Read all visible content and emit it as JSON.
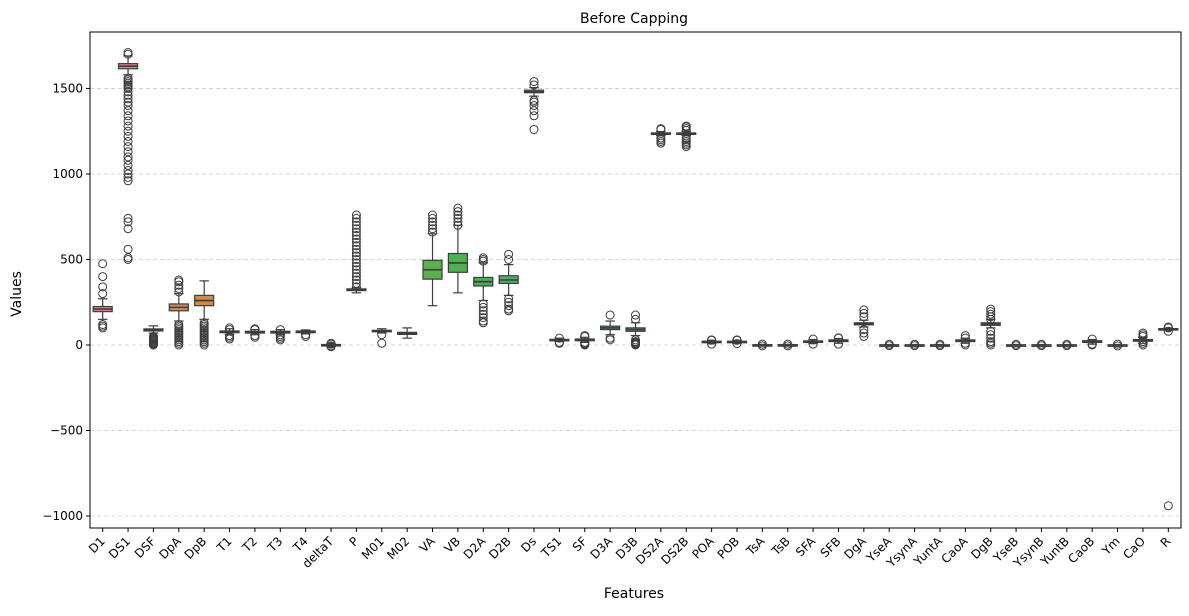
{
  "chart_data": {
    "type": "box",
    "title": "Before Capping",
    "xlabel": "Features",
    "ylabel": "Values",
    "ylim": [
      -1070,
      1830
    ],
    "yticks": [
      -1000,
      -500,
      0,
      500,
      1000,
      1500
    ],
    "ytick_labels": [
      "−1000",
      "−500",
      "0",
      "500",
      "1000",
      "1500"
    ],
    "grid": "y-dashed",
    "box_width": 0.75,
    "series": [
      {
        "name": "D1",
        "color": "#e1818d",
        "q1": 195,
        "med": 210,
        "q3": 225,
        "lo": 150,
        "hi": 270,
        "outliers": [
          100,
          110,
          120,
          300,
          340,
          400,
          475
        ]
      },
      {
        "name": "DS1",
        "color": "#e0848a",
        "q1": 1615,
        "med": 1630,
        "q3": 1645,
        "lo": 1580,
        "hi": 1690,
        "outliers": [
          500,
          510,
          560,
          680,
          720,
          740,
          960,
          980,
          1000,
          1020,
          1050,
          1080,
          1100,
          1130,
          1160,
          1190,
          1220,
          1250,
          1280,
          1310,
          1340,
          1370,
          1400,
          1420,
          1440,
          1460,
          1480,
          1500,
          1510,
          1520,
          1530,
          1540,
          1550,
          1560,
          1700,
          1710
        ]
      },
      {
        "name": "DSF",
        "color": "#dd8a6f",
        "q1": 82,
        "med": 88,
        "q3": 94,
        "lo": 70,
        "hi": 112,
        "outliers": [
          0,
          5,
          10,
          15,
          20,
          25,
          30,
          35,
          40,
          45,
          50
        ]
      },
      {
        "name": "DpA",
        "color": "#d28b53",
        "q1": 200,
        "med": 220,
        "q3": 240,
        "lo": 140,
        "hi": 300,
        "outliers": [
          0,
          10,
          20,
          30,
          40,
          50,
          60,
          70,
          80,
          90,
          100,
          110,
          120,
          310,
          330,
          350,
          370,
          380
        ]
      },
      {
        "name": "DpB",
        "color": "#cd8d48",
        "q1": 230,
        "med": 260,
        "q3": 290,
        "lo": 150,
        "hi": 375,
        "outliers": [
          0,
          10,
          20,
          30,
          40,
          50,
          60,
          70,
          80,
          90,
          100,
          110,
          120,
          130
        ]
      },
      {
        "name": "T1",
        "color": "#bf9447",
        "q1": 72,
        "med": 78,
        "q3": 82,
        "lo": 60,
        "hi": 95,
        "outliers": [
          35,
          45,
          55,
          90,
          100
        ]
      },
      {
        "name": "T2",
        "color": "#b49a4a",
        "q1": 70,
        "med": 76,
        "q3": 80,
        "lo": 60,
        "hi": 90,
        "outliers": [
          45,
          55,
          90,
          95
        ]
      },
      {
        "name": "T3",
        "color": "#a89f4b",
        "q1": 70,
        "med": 76,
        "q3": 80,
        "lo": 60,
        "hi": 90,
        "outliers": [
          30,
          40,
          50,
          60,
          90
        ]
      },
      {
        "name": "T4",
        "color": "#9ba34b",
        "q1": 72,
        "med": 78,
        "q3": 82,
        "lo": 65,
        "hi": 88,
        "outliers": [
          50,
          60
        ]
      },
      {
        "name": "deltaT",
        "color": "#8ca74d",
        "q1": -3,
        "med": 0,
        "q3": 3,
        "lo": -8,
        "hi": 8,
        "outliers": [
          -10,
          -5,
          5,
          10
        ]
      },
      {
        "name": "P",
        "color": "#7eaa4f",
        "q1": 318,
        "med": 322,
        "q3": 328,
        "lo": 305,
        "hi": 335,
        "outliers": [
          340,
          360,
          380,
          400,
          420,
          440,
          460,
          480,
          500,
          520,
          540,
          560,
          580,
          600,
          620,
          640,
          660,
          680,
          700,
          720,
          740,
          760
        ]
      },
      {
        "name": "M01",
        "color": "#70ac4f",
        "q1": 78,
        "med": 82,
        "q3": 86,
        "lo": 70,
        "hi": 95,
        "outliers": [
          10,
          60
        ]
      },
      {
        "name": "M02",
        "color": "#63ae4f",
        "q1": 62,
        "med": 68,
        "q3": 74,
        "lo": 40,
        "hi": 100,
        "outliers": []
      },
      {
        "name": "VA",
        "color": "#5aaf4f",
        "q1": 385,
        "med": 440,
        "q3": 495,
        "lo": 230,
        "hi": 650,
        "outliers": [
          660,
          680,
          700,
          720,
          740,
          760
        ]
      },
      {
        "name": "VB",
        "color": "#50b04f",
        "q1": 425,
        "med": 480,
        "q3": 535,
        "lo": 305,
        "hi": 700,
        "outliers": [
          700,
          720,
          740,
          760,
          780,
          800
        ]
      },
      {
        "name": "D2A",
        "color": "#47b152",
        "q1": 345,
        "med": 370,
        "q3": 395,
        "lo": 260,
        "hi": 480,
        "outliers": [
          130,
          140,
          160,
          180,
          200,
          220,
          240,
          490,
          500,
          510
        ]
      },
      {
        "name": "D2B",
        "color": "#47b065",
        "q1": 360,
        "med": 380,
        "q3": 405,
        "lo": 290,
        "hi": 470,
        "outliers": [
          200,
          210,
          230,
          250,
          270,
          500,
          530
        ]
      },
      {
        "name": "Ds",
        "color": "#45af78",
        "q1": 1475,
        "med": 1480,
        "q3": 1490,
        "lo": 1455,
        "hi": 1505,
        "outliers": [
          1260,
          1340,
          1370,
          1400,
          1420,
          1430,
          1520,
          1540
        ]
      },
      {
        "name": "TS1",
        "color": "#45ae87",
        "q1": 27,
        "med": 30,
        "q3": 33,
        "lo": 20,
        "hi": 40,
        "outliers": [
          10,
          15,
          40
        ]
      },
      {
        "name": "SF",
        "color": "#44ad94",
        "q1": 25,
        "med": 30,
        "q3": 35,
        "lo": 15,
        "hi": 45,
        "outliers": [
          0,
          5,
          10,
          15,
          50,
          55
        ]
      },
      {
        "name": "D3A",
        "color": "#45ac9f",
        "q1": 90,
        "med": 100,
        "q3": 110,
        "lo": 60,
        "hi": 140,
        "outliers": [
          30,
          40,
          175
        ]
      },
      {
        "name": "D3B",
        "color": "#46aba9",
        "q1": 80,
        "med": 90,
        "q3": 100,
        "lo": 55,
        "hi": 130,
        "outliers": [
          0,
          5,
          10,
          15,
          20,
          30,
          150,
          175
        ]
      },
      {
        "name": "DS2A",
        "color": "#48aab5",
        "q1": 1232,
        "med": 1236,
        "q3": 1240,
        "lo": 1225,
        "hi": 1248,
        "outliers": [
          1180,
          1190,
          1200,
          1210,
          1260,
          1265
        ]
      },
      {
        "name": "DS2B",
        "color": "#4aa9c2",
        "q1": 1232,
        "med": 1236,
        "q3": 1240,
        "lo": 1225,
        "hi": 1248,
        "outliers": [
          1160,
          1170,
          1180,
          1190,
          1200,
          1210,
          1255,
          1265,
          1275,
          1280
        ]
      },
      {
        "name": "POA",
        "color": "#4fa6d1",
        "q1": 15,
        "med": 18,
        "q3": 22,
        "lo": 8,
        "hi": 28,
        "outliers": [
          5,
          28,
          30
        ]
      },
      {
        "name": "POB",
        "color": "#5aa2dd",
        "q1": 15,
        "med": 18,
        "q3": 22,
        "lo": 8,
        "hi": 28,
        "outliers": [
          8,
          28,
          30
        ]
      },
      {
        "name": "TsA",
        "color": "#6a9de4",
        "q1": -2,
        "med": 0,
        "q3": 2,
        "lo": -4,
        "hi": 4,
        "outliers": [
          -5,
          5
        ]
      },
      {
        "name": "TsB",
        "color": "#7d98e9",
        "q1": -2,
        "med": 0,
        "q3": 2,
        "lo": -4,
        "hi": 4,
        "outliers": [
          -5,
          5
        ]
      },
      {
        "name": "SFA",
        "color": "#9193ec",
        "q1": 15,
        "med": 20,
        "q3": 24,
        "lo": 8,
        "hi": 32,
        "outliers": [
          5,
          35
        ]
      },
      {
        "name": "SFB",
        "color": "#a68eec",
        "q1": 20,
        "med": 25,
        "q3": 30,
        "lo": 10,
        "hi": 38,
        "outliers": [
          5,
          40,
          42
        ]
      },
      {
        "name": "DgA",
        "color": "#b989e9",
        "q1": 118,
        "med": 124,
        "q3": 130,
        "lo": 105,
        "hi": 145,
        "outliers": [
          50,
          70,
          90,
          165,
          185,
          205
        ]
      },
      {
        "name": "YseA",
        "color": "#c985e2",
        "q1": -1,
        "med": 0,
        "q3": 1,
        "lo": -3,
        "hi": 3,
        "outliers": [
          -4,
          4
        ]
      },
      {
        "name": "YsynA",
        "color": "#d782d8",
        "q1": -1,
        "med": 0,
        "q3": 1,
        "lo": -3,
        "hi": 3,
        "outliers": [
          -4,
          4
        ]
      },
      {
        "name": "YuntA",
        "color": "#e07fcc",
        "q1": -1,
        "med": 0,
        "q3": 1,
        "lo": -3,
        "hi": 3,
        "outliers": [
          -4,
          4
        ]
      },
      {
        "name": "CaoA",
        "color": "#e581bd",
        "q1": 20,
        "med": 25,
        "q3": 30,
        "lo": 10,
        "hi": 40,
        "outliers": [
          0,
          10,
          40,
          55
        ]
      },
      {
        "name": "DgB",
        "color": "#e883b0",
        "q1": 115,
        "med": 122,
        "q3": 130,
        "lo": 100,
        "hi": 150,
        "outliers": [
          0,
          10,
          20,
          40,
          60,
          80,
          150,
          165,
          180,
          195,
          210
        ]
      },
      {
        "name": "YseB",
        "color": "#e985a4",
        "q1": -1,
        "med": 0,
        "q3": 1,
        "lo": -3,
        "hi": 3,
        "outliers": [
          -4,
          4
        ]
      },
      {
        "name": "YsynB",
        "color": "#ea879a",
        "q1": -1,
        "med": 0,
        "q3": 1,
        "lo": -3,
        "hi": 3,
        "outliers": [
          -4,
          4
        ]
      },
      {
        "name": "YuntB",
        "color": "#e98890",
        "q1": -1,
        "med": 0,
        "q3": 1,
        "lo": -3,
        "hi": 3,
        "outliers": [
          -4,
          4
        ]
      },
      {
        "name": "CaoB",
        "color": "#e78a86",
        "q1": 15,
        "med": 20,
        "q3": 25,
        "lo": 5,
        "hi": 32,
        "outliers": [
          0,
          5,
          35
        ]
      },
      {
        "name": "Ym",
        "color": "#e48b7e",
        "q1": -1,
        "med": 0,
        "q3": 1,
        "lo": -3,
        "hi": 3,
        "outliers": [
          -5,
          5
        ]
      },
      {
        "name": "CaO",
        "color": "#e18c77",
        "q1": 22,
        "med": 27,
        "q3": 32,
        "lo": 10,
        "hi": 45,
        "outliers": [
          0,
          10,
          20,
          50,
          60,
          70
        ]
      },
      {
        "name": "R",
        "color": "#df8d73",
        "q1": 90,
        "med": 93,
        "q3": 96,
        "lo": 85,
        "hi": 100,
        "outliers": [
          -940,
          80,
          100,
          105
        ]
      }
    ]
  }
}
